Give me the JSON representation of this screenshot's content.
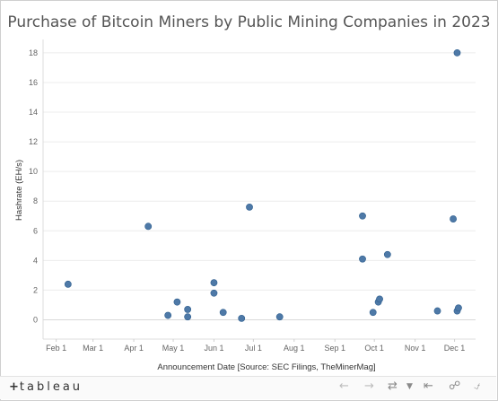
{
  "chart_data": {
    "type": "scatter",
    "title": "Purchase of Bitcoin Miners by Public Mining Companies in 2023",
    "xlabel": "Announcement Date [Source: SEC Filings, TheMinerMag]",
    "ylabel": "Hashrate (EH/s)",
    "xlim": [
      "2023-01-22",
      "2023-12-17"
    ],
    "ylim": [
      -1.3,
      18.9
    ],
    "x_ticks": [
      {
        "date": "2023-02-01",
        "label": "Feb 1"
      },
      {
        "date": "2023-03-01",
        "label": "Mar 1"
      },
      {
        "date": "2023-04-01",
        "label": "Apr 1"
      },
      {
        "date": "2023-05-01",
        "label": "May 1"
      },
      {
        "date": "2023-06-01",
        "label": "Jun 1"
      },
      {
        "date": "2023-07-01",
        "label": "Jul 1"
      },
      {
        "date": "2023-08-01",
        "label": "Aug 1"
      },
      {
        "date": "2023-09-01",
        "label": "Sep 1"
      },
      {
        "date": "2023-10-01",
        "label": "Oct 1"
      },
      {
        "date": "2023-11-01",
        "label": "Nov 1"
      },
      {
        "date": "2023-12-01",
        "label": "Dec 1"
      }
    ],
    "y_ticks": [
      0,
      2,
      4,
      6,
      8,
      10,
      12,
      14,
      16,
      18
    ],
    "grid": "horizontal",
    "point_color": "#4e79a7",
    "points": [
      {
        "x": "2023-02-10",
        "y": 2.4
      },
      {
        "x": "2023-04-12",
        "y": 6.3
      },
      {
        "x": "2023-04-27",
        "y": 0.3
      },
      {
        "x": "2023-05-04",
        "y": 1.2
      },
      {
        "x": "2023-05-12",
        "y": 0.7
      },
      {
        "x": "2023-05-12",
        "y": 0.2
      },
      {
        "x": "2023-06-01",
        "y": 2.5
      },
      {
        "x": "2023-06-01",
        "y": 1.8
      },
      {
        "x": "2023-06-08",
        "y": 0.5
      },
      {
        "x": "2023-06-22",
        "y": 0.1
      },
      {
        "x": "2023-06-28",
        "y": 7.6
      },
      {
        "x": "2023-07-21",
        "y": 0.2
      },
      {
        "x": "2023-09-22",
        "y": 7.0
      },
      {
        "x": "2023-09-22",
        "y": 4.1
      },
      {
        "x": "2023-09-30",
        "y": 0.5
      },
      {
        "x": "2023-10-04",
        "y": 1.2
      },
      {
        "x": "2023-10-05",
        "y": 1.4
      },
      {
        "x": "2023-10-11",
        "y": 4.4
      },
      {
        "x": "2023-11-18",
        "y": 0.6
      },
      {
        "x": "2023-11-30",
        "y": 6.8
      },
      {
        "x": "2023-12-03",
        "y": 18.0
      },
      {
        "x": "2023-12-03",
        "y": 0.6
      },
      {
        "x": "2023-12-04",
        "y": 0.8
      }
    ]
  },
  "toolbar": {
    "brand_plus": "+",
    "brand_text": "tableau",
    "icons": {
      "undo": "undo-icon",
      "redo": "redo-icon",
      "revert": "revert-icon",
      "refresh": "refresh-icon",
      "share": "share-icon",
      "download": "download-icon"
    }
  }
}
